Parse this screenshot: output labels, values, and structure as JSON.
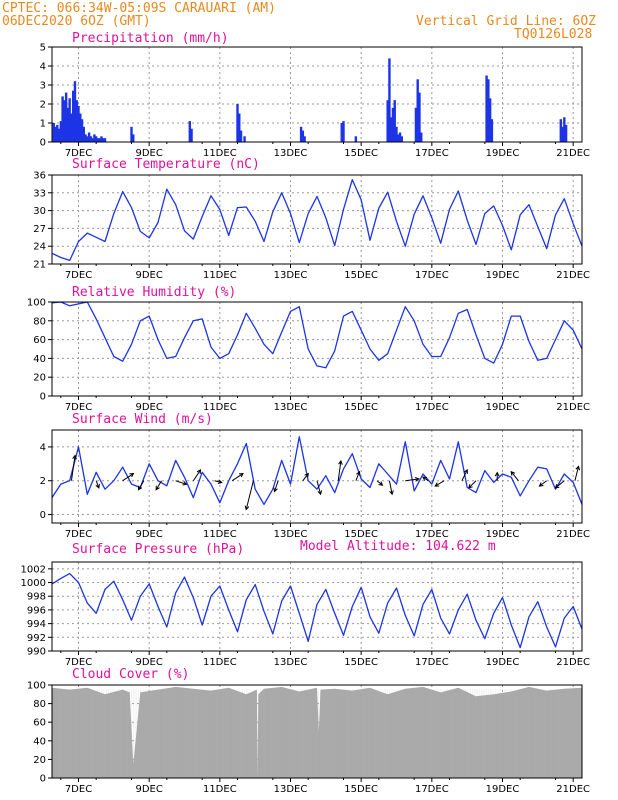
{
  "header": {
    "line1": "CPTEC:   066:34W-05:09S   CARAUARI (AM)",
    "line2": "06DEC2020 6OZ (GMT)",
    "grid_note": "Vertical Grid Line: 6OZ",
    "model_code": "TQ0126L028"
  },
  "colors": {
    "header": "#e8891f",
    "title": "#e0129a",
    "series": "#1c34e6",
    "bar": "#1c34e6",
    "cloud": "#a9a9a9",
    "grid": "#9a9a9a"
  },
  "x_ticks": [
    "7DEC",
    "9DEC",
    "11DEC",
    "13DEC",
    "15DEC",
    "17DEC",
    "19DEC",
    "21DEC"
  ],
  "model_altitude": "Model Altitude: 104.622 m",
  "chart_data": [
    {
      "id": "precip",
      "type": "bar",
      "title": "Precipitation (mm/h)",
      "ylim": [
        0,
        5
      ],
      "yticks": [
        "0",
        "1",
        "2",
        "3",
        "4",
        "5"
      ],
      "grid": true,
      "x_unit": "days since 06DEC2020 06Z",
      "x": [
        0.05,
        0.1,
        0.15,
        0.2,
        0.25,
        0.3,
        0.35,
        0.4,
        0.45,
        0.5,
        0.55,
        0.6,
        0.65,
        0.7,
        0.75,
        0.8,
        0.85,
        0.9,
        0.95,
        1.0,
        1.05,
        1.1,
        1.15,
        1.2,
        1.25,
        1.3,
        1.35,
        1.4,
        1.45,
        1.5,
        2.25,
        2.3,
        3.9,
        3.95,
        5.25,
        5.3,
        5.35,
        5.45,
        7.05,
        7.1,
        7.15,
        8.2,
        8.25,
        8.6,
        9.5,
        9.55,
        9.6,
        9.65,
        9.7,
        9.75,
        9.8,
        9.85,
        9.9,
        10.3,
        10.35,
        10.4,
        10.45,
        12.3,
        12.35,
        12.4,
        12.45,
        14.4,
        14.45,
        14.5,
        14.55
      ],
      "values": [
        1.0,
        0.8,
        0.9,
        0.7,
        1.1,
        2.4,
        2.2,
        2.6,
        1.8,
        2.3,
        1.5,
        2.7,
        3.2,
        2.2,
        1.9,
        1.5,
        1.2,
        0.8,
        0.4,
        0.3,
        0.5,
        0.3,
        0.2,
        0.4,
        0.3,
        0.2,
        0.2,
        0.3,
        0.2,
        0.2,
        0.8,
        0.4,
        1.1,
        0.7,
        2.0,
        1.5,
        0.6,
        0.3,
        0.8,
        0.6,
        0.3,
        1.0,
        1.1,
        0.3,
        2.2,
        4.4,
        1.3,
        1.8,
        2.2,
        0.8,
        0.4,
        0.5,
        0.3,
        1.8,
        3.3,
        2.6,
        0.5,
        3.5,
        3.3,
        2.3,
        1.2,
        1.2,
        0.8,
        1.3,
        0.9
      ]
    },
    {
      "id": "temp",
      "type": "line",
      "title": "Surface Temperature (nC)",
      "ylim": [
        21,
        36
      ],
      "yticks": [
        "21",
        "24",
        "27",
        "30",
        "33",
        "36"
      ],
      "grid": true,
      "x_unit": "days since 06DEC2020 06Z",
      "x": [
        0,
        0.25,
        0.5,
        0.75,
        1.0,
        1.25,
        1.5,
        1.75,
        2.0,
        2.25,
        2.5,
        2.75,
        3.0,
        3.25,
        3.5,
        3.75,
        4.0,
        4.25,
        4.5,
        4.75,
        5.0,
        5.25,
        5.5,
        5.75,
        6.0,
        6.25,
        6.5,
        6.75,
        7.0,
        7.25,
        7.5,
        7.75,
        8.0,
        8.25,
        8.5,
        8.75,
        9.0,
        9.25,
        9.5,
        9.75,
        10.0,
        10.25,
        10.5,
        10.75,
        11.0,
        11.25,
        11.5,
        11.75,
        12.0,
        12.25,
        12.5,
        12.75,
        13.0,
        13.25,
        13.5,
        13.75,
        14.0,
        14.25,
        14.5,
        14.75,
        15.0
      ],
      "values": [
        22.8,
        22.1,
        21.6,
        24.8,
        26.2,
        25.5,
        24.8,
        29.5,
        33.2,
        30.5,
        26.5,
        25.4,
        28.0,
        33.6,
        31.0,
        26.6,
        25.2,
        29.0,
        32.5,
        30.2,
        25.8,
        30.5,
        30.6,
        28.2,
        24.8,
        29.8,
        33.0,
        29.5,
        24.6,
        29.5,
        32.4,
        28.8,
        24.1,
        30.2,
        35.2,
        31.8,
        25.0,
        30.4,
        33.1,
        28.2,
        24.0,
        29.4,
        32.5,
        28.8,
        24.5,
        30.2,
        33.3,
        28.4,
        24.3,
        29.5,
        30.8,
        27.5,
        23.4,
        29.3,
        31.0,
        27.3,
        23.6,
        29.3,
        32.0,
        27.8,
        24.0
      ]
    },
    {
      "id": "rh",
      "type": "line",
      "title": "Relative Humidity (%)",
      "ylim": [
        0,
        100
      ],
      "yticks": [
        "0",
        "20",
        "40",
        "60",
        "80",
        "100"
      ],
      "grid": true,
      "x_unit": "days since 06DEC2020 06Z",
      "x": [
        0,
        0.25,
        0.5,
        0.75,
        1.0,
        1.25,
        1.5,
        1.75,
        2.0,
        2.25,
        2.5,
        2.75,
        3.0,
        3.25,
        3.5,
        3.75,
        4.0,
        4.25,
        4.5,
        4.75,
        5.0,
        5.25,
        5.5,
        5.75,
        6.0,
        6.25,
        6.5,
        6.75,
        7.0,
        7.25,
        7.5,
        7.75,
        8.0,
        8.25,
        8.5,
        8.75,
        9.0,
        9.25,
        9.5,
        9.75,
        10.0,
        10.25,
        10.5,
        10.75,
        11.0,
        11.25,
        11.5,
        11.75,
        12.0,
        12.25,
        12.5,
        12.75,
        13.0,
        13.25,
        13.5,
        13.75,
        14.0,
        14.25,
        14.5,
        14.75,
        15.0
      ],
      "values": [
        99,
        100,
        96,
        98,
        100,
        82,
        62,
        42,
        37,
        55,
        80,
        85,
        60,
        40,
        42,
        62,
        80,
        82,
        52,
        40,
        45,
        65,
        88,
        72,
        55,
        45,
        68,
        90,
        95,
        50,
        32,
        30,
        48,
        85,
        90,
        70,
        50,
        38,
        45,
        70,
        95,
        80,
        55,
        42,
        42,
        62,
        88,
        92,
        65,
        40,
        35,
        55,
        85,
        85,
        58,
        38,
        40,
        60,
        80,
        70,
        50
      ]
    },
    {
      "id": "wind",
      "type": "line",
      "title": "Surface Wind (m/s)",
      "ylim": [
        -0.5,
        5
      ],
      "yticks": [
        "0",
        "2",
        "4"
      ],
      "ytick_values": [
        0,
        2,
        4
      ],
      "grid": true,
      "x_unit": "days since 06DEC2020 06Z",
      "x": [
        0,
        0.25,
        0.5,
        0.75,
        1.0,
        1.25,
        1.5,
        1.75,
        2.0,
        2.25,
        2.5,
        2.75,
        3.0,
        3.25,
        3.5,
        3.75,
        4.0,
        4.25,
        4.5,
        4.75,
        5.0,
        5.25,
        5.5,
        5.75,
        6.0,
        6.25,
        6.5,
        6.75,
        7.0,
        7.25,
        7.5,
        7.75,
        8.0,
        8.25,
        8.5,
        8.75,
        9.0,
        9.25,
        9.5,
        9.75,
        10.0,
        10.25,
        10.5,
        10.75,
        11.0,
        11.25,
        11.5,
        11.75,
        12.0,
        12.25,
        12.5,
        12.75,
        13.0,
        13.25,
        13.5,
        13.75,
        14.0,
        14.25,
        14.5,
        14.75,
        15.0
      ],
      "values": [
        1.0,
        1.8,
        2.0,
        4.0,
        1.2,
        2.5,
        1.5,
        2.0,
        2.8,
        1.8,
        1.6,
        3.0,
        2.0,
        1.7,
        3.2,
        2.2,
        1.0,
        2.5,
        1.8,
        0.7,
        2.0,
        3.0,
        4.2,
        1.5,
        0.6,
        1.5,
        3.2,
        1.8,
        4.6,
        2.0,
        1.5,
        2.3,
        1.3,
        2.7,
        3.6,
        2.1,
        1.6,
        3.0,
        2.4,
        1.8,
        4.3,
        1.4,
        2.4,
        1.8,
        3.2,
        2.1,
        4.3,
        1.6,
        1.3,
        2.6,
        1.9,
        2.4,
        2.2,
        1.1,
        2.0,
        2.8,
        2.7,
        1.5,
        2.4,
        1.9,
        0.6
      ],
      "vectors": [
        {
          "x": 0.55,
          "u": 0.4,
          "v": 2.8
        },
        {
          "x": 1.25,
          "u": 0.3,
          "v": -0.8
        },
        {
          "x": 2.0,
          "u": 1.2,
          "v": 0.8
        },
        {
          "x": 2.6,
          "u": -0.6,
          "v": -1.0
        },
        {
          "x": 3.1,
          "u": -0.6,
          "v": -1.0
        },
        {
          "x": 3.5,
          "u": 1.2,
          "v": -0.4
        },
        {
          "x": 4.0,
          "u": 0.8,
          "v": 1.2
        },
        {
          "x": 4.6,
          "u": 0.8,
          "v": -0.2
        },
        {
          "x": 5.1,
          "u": 1.2,
          "v": 0.8
        },
        {
          "x": 5.7,
          "u": -0.8,
          "v": -3.2
        },
        {
          "x": 6.4,
          "u": -0.4,
          "v": -1.2
        },
        {
          "x": 7.1,
          "u": 0.6,
          "v": 0.8
        },
        {
          "x": 7.5,
          "u": 0.4,
          "v": -1.5
        },
        {
          "x": 8.1,
          "u": 0.3,
          "v": 2.2
        },
        {
          "x": 8.6,
          "u": 0.4,
          "v": 1.0
        },
        {
          "x": 9.2,
          "u": 0.6,
          "v": -0.5
        },
        {
          "x": 9.55,
          "u": 0.3,
          "v": -1.5
        },
        {
          "x": 10.0,
          "u": 1.5,
          "v": 0.2
        },
        {
          "x": 10.65,
          "u": -0.6,
          "v": 0.4
        },
        {
          "x": 11.1,
          "u": -1.0,
          "v": -0.6
        },
        {
          "x": 11.6,
          "u": 0.6,
          "v": 1.2
        },
        {
          "x": 12.0,
          "u": -0.8,
          "v": -0.8
        },
        {
          "x": 12.6,
          "u": 0.0,
          "v": 0.9
        },
        {
          "x": 13.2,
          "u": -0.8,
          "v": 1.0
        },
        {
          "x": 14.0,
          "u": -0.8,
          "v": -0.6
        },
        {
          "x": 14.5,
          "u": -1.0,
          "v": -0.8
        },
        {
          "x": 14.8,
          "u": 0.4,
          "v": 1.6
        }
      ]
    },
    {
      "id": "pres",
      "type": "line",
      "title": "Surface Pressure (hPa)",
      "ylim": [
        990,
        1003
      ],
      "yticks": [
        "990",
        "992",
        "994",
        "996",
        "998",
        "1000",
        "1002"
      ],
      "ytick_values": [
        990,
        992,
        994,
        996,
        998,
        1000,
        1002
      ],
      "grid": true,
      "x_unit": "days since 06DEC2020 06Z",
      "x": [
        0,
        0.25,
        0.5,
        0.75,
        1.0,
        1.25,
        1.5,
        1.75,
        2.0,
        2.25,
        2.5,
        2.75,
        3.0,
        3.25,
        3.5,
        3.75,
        4.0,
        4.25,
        4.5,
        4.75,
        5.0,
        5.25,
        5.5,
        5.75,
        6.0,
        6.25,
        6.5,
        6.75,
        7.0,
        7.25,
        7.5,
        7.75,
        8.0,
        8.25,
        8.5,
        8.75,
        9.0,
        9.25,
        9.5,
        9.75,
        10.0,
        10.25,
        10.5,
        10.75,
        11.0,
        11.25,
        11.5,
        11.75,
        12.0,
        12.25,
        12.5,
        12.75,
        13.0,
        13.25,
        13.5,
        13.75,
        14.0,
        14.25,
        14.5,
        14.75,
        15.0
      ],
      "values": [
        999.8,
        1000.6,
        1001.3,
        1000.0,
        997.0,
        995.5,
        999.0,
        1000.2,
        997.5,
        994.5,
        998.0,
        999.8,
        996.5,
        993.5,
        998.5,
        1000.8,
        997.8,
        993.8,
        998.0,
        999.5,
        996.0,
        992.8,
        997.5,
        999.7,
        995.8,
        992.5,
        997.3,
        999.5,
        995.5,
        991.4,
        996.8,
        999.0,
        995.5,
        992.3,
        996.5,
        999.3,
        995.0,
        992.6,
        997.0,
        999.2,
        995.2,
        992.2,
        996.8,
        999.0,
        994.8,
        992.5,
        996.0,
        998.3,
        994.5,
        991.8,
        995.5,
        997.8,
        993.8,
        990.5,
        995.0,
        997.2,
        993.5,
        990.6,
        994.8,
        996.5,
        993.2
      ]
    },
    {
      "id": "cloud",
      "type": "area",
      "title": "Cloud Cover (%)",
      "ylim": [
        0,
        100
      ],
      "yticks": [
        "0",
        "20",
        "40",
        "60",
        "80",
        "100"
      ],
      "grid": true,
      "x_unit": "days since 06DEC2020 06Z",
      "x": [
        0,
        0.5,
        1.0,
        1.5,
        2.0,
        2.2,
        2.3,
        2.5,
        3.0,
        3.5,
        4.0,
        4.5,
        5.0,
        5.5,
        5.8,
        5.82,
        5.84,
        6.0,
        6.5,
        7.0,
        7.5,
        7.55,
        7.6,
        8.0,
        8.5,
        9.0,
        9.5,
        10.0,
        10.5,
        11.0,
        11.5,
        12.0,
        12.5,
        13.0,
        13.5,
        14.0,
        14.5,
        15.0
      ],
      "values": [
        97,
        95,
        97,
        90,
        95,
        92,
        15,
        92,
        95,
        98,
        96,
        94,
        97,
        90,
        95,
        2,
        90,
        96,
        98,
        93,
        97,
        50,
        95,
        96,
        94,
        97,
        90,
        96,
        98,
        92,
        97,
        88,
        90,
        93,
        98,
        94,
        96,
        97
      ]
    }
  ]
}
